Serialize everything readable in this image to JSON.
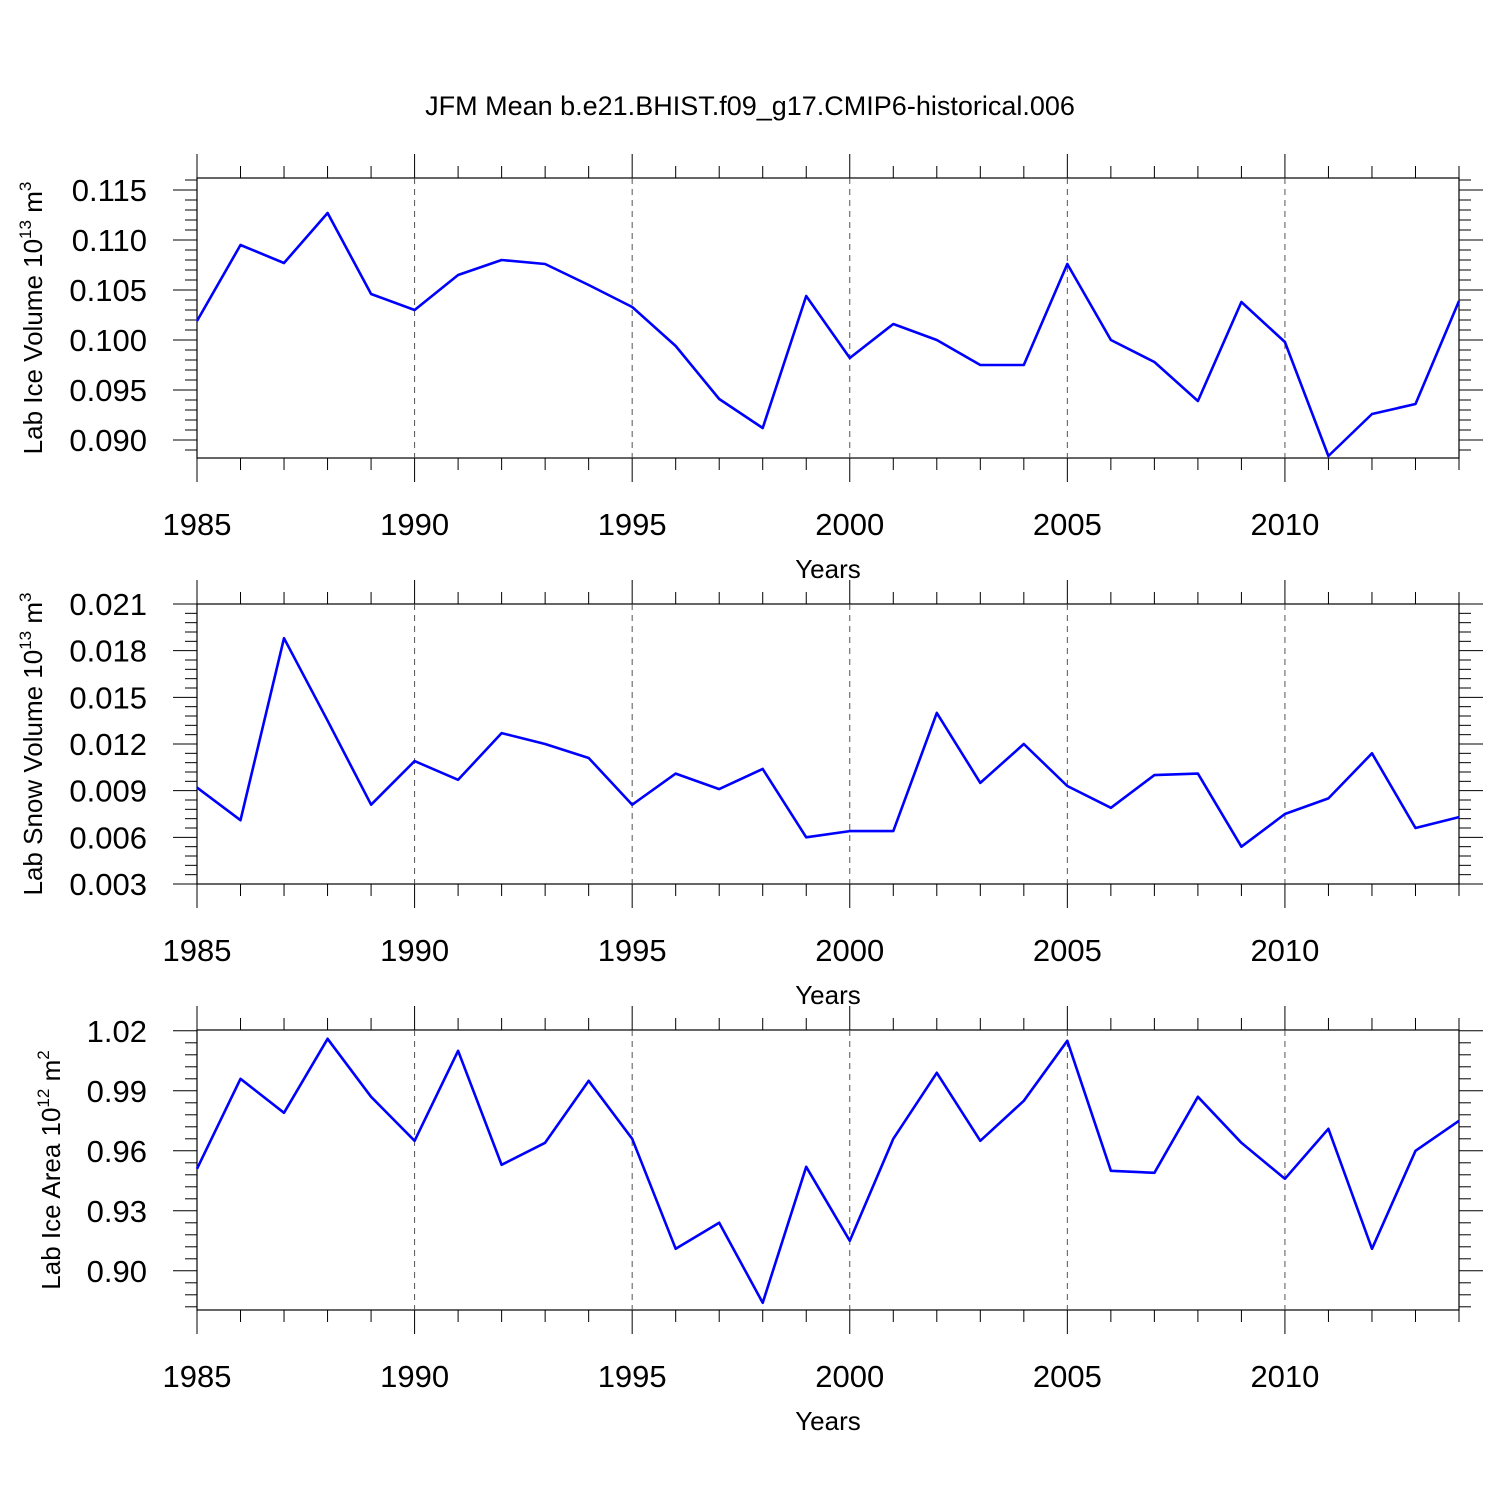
{
  "title": "JFM Mean b.e21.BHIST.f09_g17.CMIP6-historical.006",
  "line_color": "#0000ff",
  "chart_data": [
    {
      "type": "line",
      "ylabel": {
        "main": "Lab Ice Volume 10",
        "exp": "13",
        "unit": " m",
        "unit_exp": "3"
      },
      "xlabel": "Years",
      "x": [
        1985,
        1986,
        1987,
        1988,
        1989,
        1990,
        1991,
        1992,
        1993,
        1994,
        1995,
        1996,
        1997,
        1998,
        1999,
        2000,
        2001,
        2002,
        2003,
        2004,
        2005,
        2006,
        2007,
        2008,
        2009,
        2010,
        2011,
        2012,
        2013,
        2014
      ],
      "y": [
        0.1019,
        0.1095,
        0.1077,
        0.1127,
        0.1046,
        0.103,
        0.1065,
        0.108,
        0.1076,
        0.1055,
        0.1033,
        0.0994,
        0.0941,
        0.0912,
        0.1044,
        0.0982,
        0.1016,
        0.1,
        0.0975,
        0.0975,
        0.1076,
        0.1,
        0.0978,
        0.0939,
        0.1038,
        0.0998,
        0.0884,
        0.0926,
        0.0936,
        0.1039
      ],
      "xlim": [
        1985,
        2014
      ],
      "ylim": [
        0.0882,
        0.1162
      ],
      "yticks": [
        0.09,
        0.095,
        0.1,
        0.105,
        0.11,
        0.115
      ],
      "ytick_labels": [
        "0.090",
        "0.095",
        "0.100",
        "0.105",
        "0.110",
        "0.115"
      ],
      "xticks": [
        1985,
        1990,
        1995,
        2000,
        2005,
        2010
      ],
      "xtick_labels": [
        "1985",
        "1990",
        "1995",
        "2000",
        "2005",
        "2010"
      ]
    },
    {
      "type": "line",
      "ylabel": {
        "main": "Lab Snow Volume 10",
        "exp": "13",
        "unit": " m",
        "unit_exp": "3"
      },
      "xlabel": "Years",
      "x": [
        1985,
        1986,
        1987,
        1988,
        1989,
        1990,
        1991,
        1992,
        1993,
        1994,
        1995,
        1996,
        1997,
        1998,
        1999,
        2000,
        2001,
        2002,
        2003,
        2004,
        2005,
        2006,
        2007,
        2008,
        2009,
        2010,
        2011,
        2012,
        2013,
        2014
      ],
      "y": [
        0.0092,
        0.0071,
        0.0188,
        0.0135,
        0.0081,
        0.0109,
        0.0097,
        0.0127,
        0.012,
        0.0111,
        0.0081,
        0.0101,
        0.0091,
        0.0104,
        0.006,
        0.0064,
        0.0064,
        0.014,
        0.0095,
        0.012,
        0.0093,
        0.0079,
        0.01,
        0.0101,
        0.0054,
        0.0075,
        0.0085,
        0.0114,
        0.0066,
        0.0073
      ],
      "xlim": [
        1985,
        2014
      ],
      "ylim": [
        0.003,
        0.021
      ],
      "yticks": [
        0.003,
        0.006,
        0.009,
        0.012,
        0.015,
        0.018,
        0.021
      ],
      "ytick_labels": [
        "0.003",
        "0.006",
        "0.009",
        "0.012",
        "0.015",
        "0.018",
        "0.021"
      ],
      "xticks": [
        1985,
        1990,
        1995,
        2000,
        2005,
        2010
      ],
      "xtick_labels": [
        "1985",
        "1990",
        "1995",
        "2000",
        "2005",
        "2010"
      ]
    },
    {
      "type": "line",
      "ylabel": {
        "main": "Lab Ice Area 10",
        "exp": "12",
        "unit": " m",
        "unit_exp": "2"
      },
      "xlabel": "Years",
      "x": [
        1985,
        1986,
        1987,
        1988,
        1989,
        1990,
        1991,
        1992,
        1993,
        1994,
        1995,
        1996,
        1997,
        1998,
        1999,
        2000,
        2001,
        2002,
        2003,
        2004,
        2005,
        2006,
        2007,
        2008,
        2009,
        2010,
        2011,
        2012,
        2013,
        2014
      ],
      "y": [
        0.951,
        0.996,
        0.979,
        1.016,
        0.987,
        0.965,
        1.01,
        0.953,
        0.964,
        0.995,
        0.966,
        0.911,
        0.924,
        0.884,
        0.952,
        0.915,
        0.966,
        0.999,
        0.965,
        0.985,
        1.015,
        0.95,
        0.949,
        0.987,
        0.964,
        0.946,
        0.971,
        0.911,
        0.96,
        0.975
      ],
      "xlim": [
        1985,
        2014
      ],
      "ylim": [
        0.8804,
        1.0204
      ],
      "yticks": [
        0.9,
        0.93,
        0.96,
        0.99,
        1.02
      ],
      "ytick_labels": [
        "0.90",
        "0.93",
        "0.96",
        "0.99",
        "1.02"
      ],
      "xticks": [
        1985,
        1990,
        1995,
        2000,
        2005,
        2010
      ],
      "xtick_labels": [
        "1985",
        "1990",
        "1995",
        "2000",
        "2005",
        "2010"
      ]
    }
  ]
}
